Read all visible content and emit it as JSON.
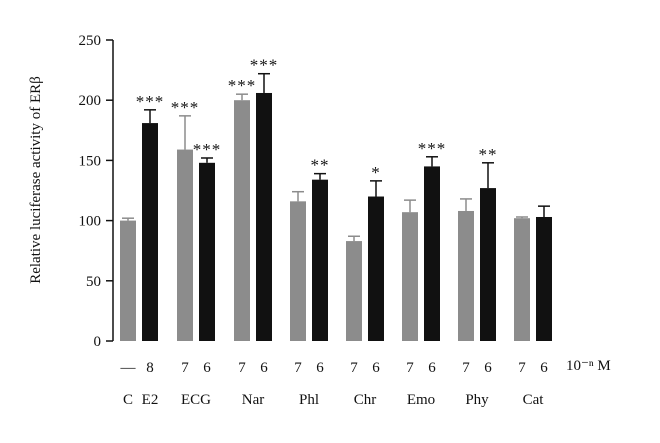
{
  "chart_data": {
    "type": "bar",
    "title": "",
    "ylabel": "Relative luciferase activity of ERβ",
    "ylim": [
      0,
      250
    ],
    "yticks": [
      0,
      50,
      100,
      150,
      200,
      250
    ],
    "grid": false,
    "unit_label": "10⁻ⁿ M",
    "groups": [
      {
        "label": "C",
        "bars": [
          {
            "sub": "—",
            "value": 100,
            "error": 2,
            "color": "#8c8c8c",
            "sig": ""
          }
        ]
      },
      {
        "label": "E2",
        "bars": [
          {
            "sub": "8",
            "value": 181,
            "error": 11,
            "color": "#111111",
            "sig": "***"
          }
        ]
      },
      {
        "label": "ECG",
        "bars": [
          {
            "sub": "7",
            "value": 159,
            "error": 28,
            "color": "#8c8c8c",
            "sig": "***"
          },
          {
            "sub": "6",
            "value": 148,
            "error": 4,
            "color": "#111111",
            "sig": "***"
          }
        ]
      },
      {
        "label": "Nar",
        "bars": [
          {
            "sub": "7",
            "value": 200,
            "error": 5,
            "color": "#8c8c8c",
            "sig": "***"
          },
          {
            "sub": "6",
            "value": 206,
            "error": 16,
            "color": "#111111",
            "sig": "***"
          }
        ]
      },
      {
        "label": "Phl",
        "bars": [
          {
            "sub": "7",
            "value": 116,
            "error": 8,
            "color": "#8c8c8c",
            "sig": ""
          },
          {
            "sub": "6",
            "value": 134,
            "error": 5,
            "color": "#111111",
            "sig": "**"
          }
        ]
      },
      {
        "label": "Chr",
        "bars": [
          {
            "sub": "7",
            "value": 83,
            "error": 4,
            "color": "#8c8c8c",
            "sig": ""
          },
          {
            "sub": "6",
            "value": 120,
            "error": 13,
            "color": "#111111",
            "sig": "*"
          }
        ]
      },
      {
        "label": "Emo",
        "bars": [
          {
            "sub": "7",
            "value": 107,
            "error": 10,
            "color": "#8c8c8c",
            "sig": ""
          },
          {
            "sub": "6",
            "value": 145,
            "error": 8,
            "color": "#111111",
            "sig": "***"
          }
        ]
      },
      {
        "label": "Phy",
        "bars": [
          {
            "sub": "7",
            "value": 108,
            "error": 10,
            "color": "#8c8c8c",
            "sig": ""
          },
          {
            "sub": "6",
            "value": 127,
            "error": 21,
            "color": "#111111",
            "sig": "**"
          }
        ]
      },
      {
        "label": "Cat",
        "bars": [
          {
            "sub": "7",
            "value": 102,
            "error": 1,
            "color": "#8c8c8c",
            "sig": ""
          },
          {
            "sub": "6",
            "value": 103,
            "error": 9,
            "color": "#111111",
            "sig": ""
          }
        ]
      }
    ]
  }
}
